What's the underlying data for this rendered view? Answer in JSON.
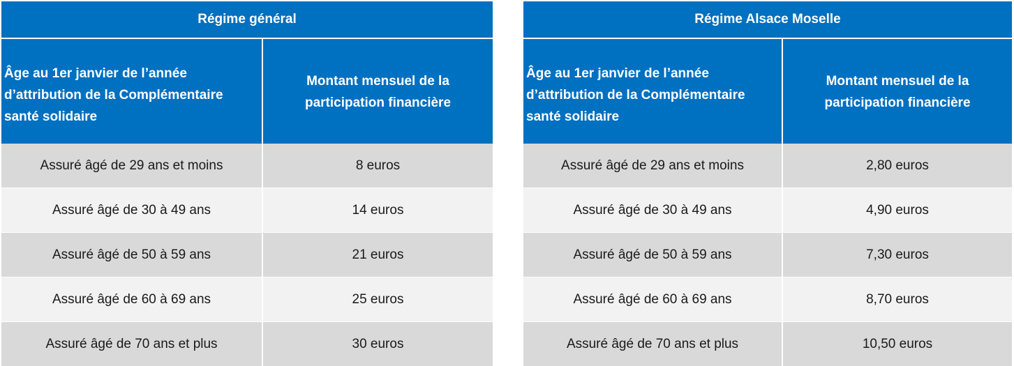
{
  "tables": [
    {
      "title": "Régime général",
      "header": {
        "col1": [
          "Âge au 1er janvier de l’année",
          "d’attribution de la Complémentaire",
          "santé solidaire"
        ],
        "col2": [
          "Montant mensuel de la",
          "participation financière"
        ]
      },
      "rows": [
        {
          "age": "Assuré âgé de 29 ans et moins",
          "amount": "8 euros"
        },
        {
          "age": "Assuré âgé de 30 à 49 ans",
          "amount": "14 euros"
        },
        {
          "age": "Assuré âgé de 50 à 59 ans",
          "amount": "21 euros"
        },
        {
          "age": "Assuré âgé de 60 à 69 ans",
          "amount": "25 euros"
        },
        {
          "age": "Assuré âgé de 70 ans et plus",
          "amount": "30 euros"
        }
      ]
    },
    {
      "title": "Régime Alsace Moselle",
      "header": {
        "col1": [
          "Âge au 1er janvier de l’année",
          "d’attribution de la Complémentaire",
          "santé solidaire"
        ],
        "col2": [
          "Montant mensuel de la",
          "participation financière"
        ]
      },
      "rows": [
        {
          "age": "Assuré âgé de 29 ans et moins",
          "amount": "2,80 euros"
        },
        {
          "age": "Assuré âgé de 30 à 49 ans",
          "amount": "4,90 euros"
        },
        {
          "age": "Assuré âgé de 50 à 59 ans",
          "amount": "7,30 euros"
        },
        {
          "age": "Assuré âgé de 60 à 69 ans",
          "amount": "8,70 euros"
        },
        {
          "age": "Assuré âgé de 70 ans et plus",
          "amount": "10,50 euros"
        }
      ]
    }
  ],
  "colors": {
    "header_bg": "#0070c0",
    "row_dark": "#d9d9d9",
    "row_light": "#f2f2f2"
  }
}
